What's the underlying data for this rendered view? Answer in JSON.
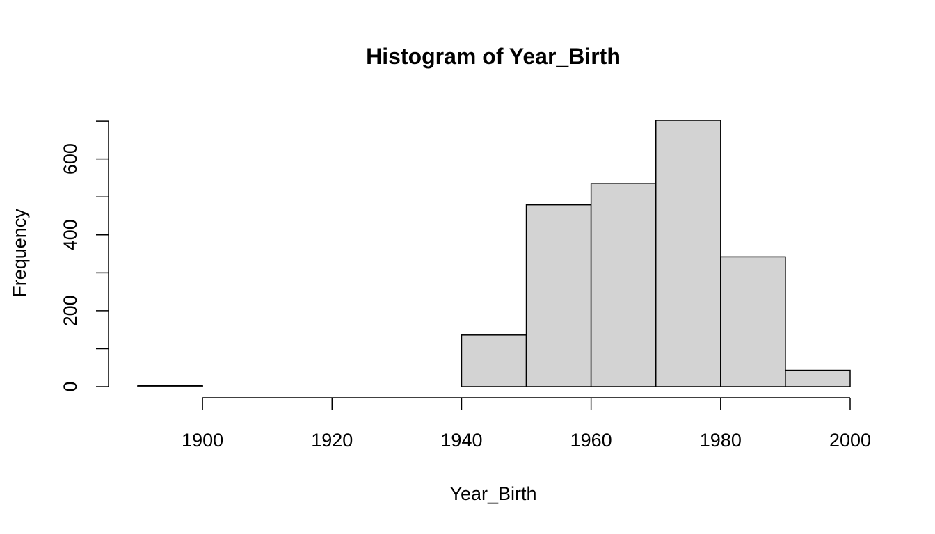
{
  "chart_data": {
    "type": "bar",
    "title": "Histogram of Year_Birth",
    "xlabel": "Year_Birth",
    "ylabel": "Frequency",
    "bins": [
      {
        "from": 1890,
        "to": 1900,
        "count": 3
      },
      {
        "from": 1900,
        "to": 1910,
        "count": 0
      },
      {
        "from": 1910,
        "to": 1920,
        "count": 0
      },
      {
        "from": 1920,
        "to": 1930,
        "count": 0
      },
      {
        "from": 1930,
        "to": 1940,
        "count": 0
      },
      {
        "from": 1940,
        "to": 1950,
        "count": 136
      },
      {
        "from": 1950,
        "to": 1960,
        "count": 479
      },
      {
        "from": 1960,
        "to": 1970,
        "count": 535
      },
      {
        "from": 1970,
        "to": 1980,
        "count": 702
      },
      {
        "from": 1980,
        "to": 1990,
        "count": 342
      },
      {
        "from": 1990,
        "to": 2000,
        "count": 43
      }
    ],
    "x_ticks": [
      1900,
      1920,
      1940,
      1960,
      1980,
      2000
    ],
    "y_ticks": [
      0,
      200,
      400,
      600
    ],
    "y_minor_ticks": [
      100,
      300,
      500,
      700
    ],
    "xlim": [
      1890,
      2000
    ],
    "ylim": [
      0,
      702
    ],
    "bar_fill": "#d3d3d3",
    "bar_stroke": "#000000",
    "grid": false,
    "legend": "none"
  }
}
